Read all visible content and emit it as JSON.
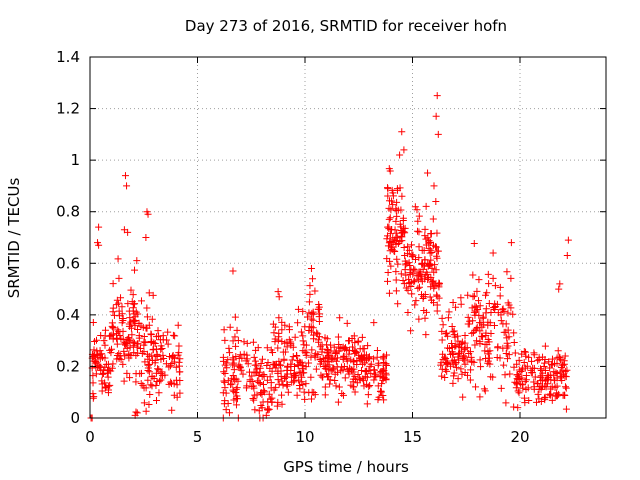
{
  "chart_data": {
    "type": "scatter",
    "title": "Day 273 of 2016, SRMTID for receiver hofn",
    "xlabel": "GPS time / hours",
    "ylabel": "SRMTID / TECUs",
    "xlim": [
      0,
      24
    ],
    "ylim": [
      0,
      1.4
    ],
    "xticks": [
      0,
      5,
      10,
      15,
      20
    ],
    "xtick_labels": [
      "0",
      "5",
      "10",
      "15",
      "20"
    ],
    "yticks": [
      0,
      0.2,
      0.4,
      0.6,
      0.8,
      1,
      1.2,
      1.4
    ],
    "ytick_labels": [
      "0",
      "0.2",
      "0.4",
      "0.6",
      "0.8",
      "1",
      "1.2",
      "1.4"
    ],
    "grid": true,
    "marker": "+",
    "series_color": "#ff0000",
    "clusters": [
      {
        "x0": 0.1,
        "x1": 1.0,
        "base": 0.2,
        "spread": 0.12,
        "n": 70
      },
      {
        "x0": 1.0,
        "x1": 2.1,
        "base": 0.33,
        "spread": 0.16,
        "n": 90
      },
      {
        "x0": 2.1,
        "x1": 3.1,
        "base": 0.25,
        "spread": 0.18,
        "n": 80
      },
      {
        "x0": 3.1,
        "x1": 4.2,
        "base": 0.22,
        "spread": 0.1,
        "n": 60
      },
      {
        "x0": 6.2,
        "x1": 7.6,
        "base": 0.18,
        "spread": 0.14,
        "n": 80
      },
      {
        "x0": 7.6,
        "x1": 8.5,
        "base": 0.12,
        "spread": 0.12,
        "n": 60
      },
      {
        "x0": 8.5,
        "x1": 10.0,
        "base": 0.22,
        "spread": 0.14,
        "n": 110
      },
      {
        "x0": 10.0,
        "x1": 10.7,
        "base": 0.3,
        "spread": 0.2,
        "n": 50
      },
      {
        "x0": 10.7,
        "x1": 12.7,
        "base": 0.22,
        "spread": 0.1,
        "n": 140
      },
      {
        "x0": 12.7,
        "x1": 13.8,
        "base": 0.18,
        "spread": 0.09,
        "n": 70
      },
      {
        "x0": 13.8,
        "x1": 14.6,
        "base": 0.72,
        "spread": 0.2,
        "n": 80
      },
      {
        "x0": 14.6,
        "x1": 16.3,
        "base": 0.58,
        "spread": 0.16,
        "n": 140
      },
      {
        "x0": 16.3,
        "x1": 17.5,
        "base": 0.25,
        "spread": 0.12,
        "n": 80
      },
      {
        "x0": 17.5,
        "x1": 19.8,
        "base": 0.32,
        "spread": 0.18,
        "n": 140
      },
      {
        "x0": 19.8,
        "x1": 22.2,
        "base": 0.16,
        "spread": 0.09,
        "n": 150
      }
    ],
    "extra_points": [
      [
        0.4,
        0.74
      ],
      [
        0.35,
        0.68
      ],
      [
        0.4,
        0.67
      ],
      [
        1.65,
        0.94
      ],
      [
        1.7,
        0.9
      ],
      [
        1.6,
        0.73
      ],
      [
        1.75,
        0.72
      ],
      [
        2.65,
        0.8
      ],
      [
        2.7,
        0.79
      ],
      [
        2.6,
        0.7
      ],
      [
        6.65,
        0.57
      ],
      [
        8.75,
        0.49
      ],
      [
        8.8,
        0.47
      ],
      [
        10.3,
        0.58
      ],
      [
        10.35,
        0.54
      ],
      [
        14.5,
        1.11
      ],
      [
        14.6,
        1.04
      ],
      [
        14.4,
        1.02
      ],
      [
        16.15,
        1.25
      ],
      [
        16.1,
        1.17
      ],
      [
        16.2,
        1.1
      ],
      [
        15.7,
        0.95
      ],
      [
        16.0,
        0.9
      ],
      [
        18.75,
        0.64
      ],
      [
        19.6,
        0.68
      ],
      [
        22.25,
        0.69
      ],
      [
        22.2,
        0.63
      ],
      [
        21.85,
        0.52
      ],
      [
        21.8,
        0.5
      ],
      [
        13.2,
        0.37
      ],
      [
        0.05,
        0.0
      ],
      [
        0.1,
        0.0
      ],
      [
        6.2,
        0.0
      ],
      [
        6.9,
        0.0
      ],
      [
        7.9,
        0.0
      ],
      [
        8.05,
        0.0
      ],
      [
        2.1,
        0.01
      ],
      [
        8.2,
        0.01
      ],
      [
        2.2,
        0.02
      ],
      [
        3.8,
        0.03
      ]
    ]
  }
}
